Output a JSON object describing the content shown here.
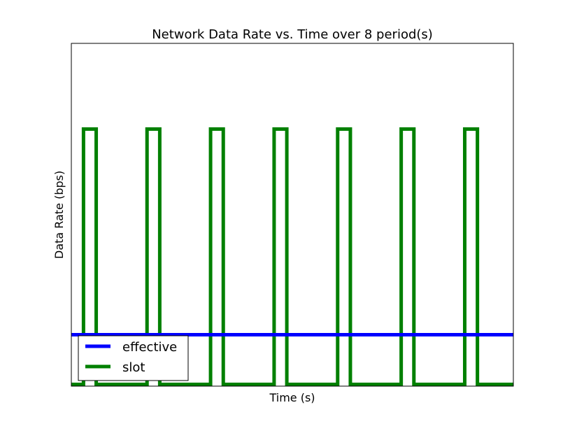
{
  "chart_data": {
    "type": "line",
    "title": "Network Data Rate vs. Time over 8 period(s)",
    "xlabel": "Time (s)",
    "ylabel": "Data Rate (bps)",
    "xlim": [
      0,
      8
    ],
    "ylim": [
      0,
      1
    ],
    "grid": false,
    "legend_position": "lower-left",
    "series": [
      {
        "name": "effective",
        "color": "#0000ff",
        "x": [
          0,
          8
        ],
        "y": [
          0.15,
          0.15
        ]
      },
      {
        "name": "slot",
        "color": "#008000",
        "x": [
          0,
          0.22,
          0.22,
          0.45,
          0.45,
          1.37,
          1.37,
          1.6,
          1.6,
          2.52,
          2.52,
          2.75,
          2.75,
          3.67,
          3.67,
          3.9,
          3.9,
          4.82,
          4.82,
          5.05,
          5.05,
          5.97,
          5.97,
          6.2,
          6.2,
          7.12,
          7.12,
          7.35,
          7.35,
          8
        ],
        "y": [
          0.005,
          0.005,
          0.75,
          0.75,
          0.005,
          0.005,
          0.75,
          0.75,
          0.005,
          0.005,
          0.75,
          0.75,
          0.005,
          0.005,
          0.75,
          0.75,
          0.005,
          0.005,
          0.75,
          0.75,
          0.005,
          0.005,
          0.75,
          0.75,
          0.005,
          0.005,
          0.75,
          0.75,
          0.005,
          0.005
        ]
      }
    ]
  }
}
